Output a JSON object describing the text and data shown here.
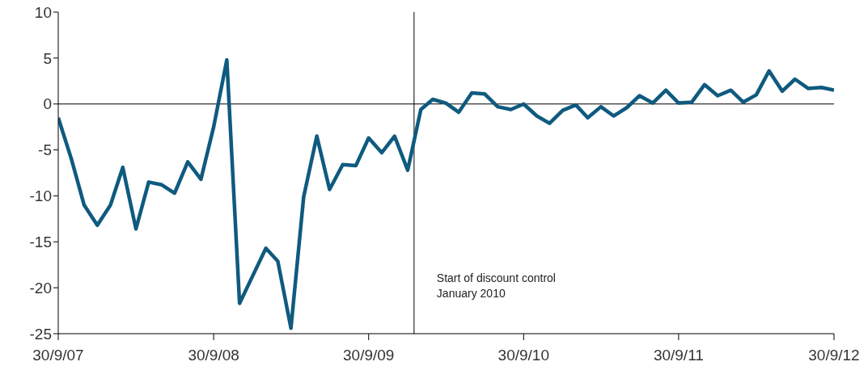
{
  "chart_data": {
    "type": "line",
    "x": [
      "2007-09-30",
      "2007-10-31",
      "2007-11-30",
      "2007-12-31",
      "2008-01-31",
      "2008-02-29",
      "2008-03-31",
      "2008-04-30",
      "2008-05-31",
      "2008-06-30",
      "2008-07-31",
      "2008-08-31",
      "2008-09-30",
      "2008-10-31",
      "2008-11-30",
      "2008-12-31",
      "2009-01-31",
      "2009-02-28",
      "2009-03-31",
      "2009-04-30",
      "2009-05-31",
      "2009-06-30",
      "2009-07-31",
      "2009-08-31",
      "2009-09-30",
      "2009-10-31",
      "2009-11-30",
      "2009-12-31",
      "2010-01-31",
      "2010-02-28",
      "2010-03-31",
      "2010-04-30",
      "2010-05-31",
      "2010-06-30",
      "2010-07-31",
      "2010-08-31",
      "2010-09-30",
      "2010-10-31",
      "2010-11-30",
      "2010-12-31",
      "2011-01-31",
      "2011-02-28",
      "2011-03-31",
      "2011-04-30",
      "2011-05-31",
      "2011-06-30",
      "2011-07-31",
      "2011-08-31",
      "2011-09-30",
      "2011-10-31",
      "2011-11-30",
      "2011-12-31",
      "2012-01-31",
      "2012-02-29",
      "2012-03-31",
      "2012-04-30",
      "2012-05-31",
      "2012-06-30",
      "2012-07-31",
      "2012-08-31",
      "2012-09-30"
    ],
    "series": [
      {
        "color": "#0f5a7f",
        "values": [
          -1.5,
          -6,
          -11,
          -13.2,
          -11,
          -6.9,
          -13.6,
          -8.5,
          -8.8,
          -9.7,
          -6.3,
          -8.2,
          -2.5,
          4.8,
          -21.7,
          -18.7,
          -15.7,
          -17.1,
          -24.4,
          -10.1,
          -3.5,
          -9.3,
          -6.6,
          -6.7,
          -3.7,
          -5.3,
          -3.5,
          -7.2,
          -0.6,
          0.5,
          0.1,
          -0.9,
          1.2,
          1.1,
          -0.3,
          -0.6,
          0,
          -1.3,
          -2.1,
          -0.7,
          -0.1,
          -1.5,
          -0.3,
          -1.3,
          -0.4,
          0.9,
          0.1,
          1.5,
          0.1,
          0.2,
          2.1,
          0.9,
          1.5,
          0.2,
          1,
          3.6,
          1.4,
          2.7,
          1.7,
          1.8,
          1.5
        ]
      }
    ],
    "xlim": [
      "2007-09-30",
      "2012-09-30"
    ],
    "xticks": [
      {
        "value": "2007-09-30",
        "label": "30/9/07"
      },
      {
        "value": "2008-09-30",
        "label": "30/9/08"
      },
      {
        "value": "2009-09-30",
        "label": "30/9/09"
      },
      {
        "value": "2010-09-30",
        "label": "30/9/10"
      },
      {
        "value": "2011-09-30",
        "label": "30/9/11"
      },
      {
        "value": "2012-09-30",
        "label": "30/9/12"
      }
    ],
    "ylim": [
      -25,
      10
    ],
    "yticks": [
      -25,
      -20,
      -15,
      -10,
      -5,
      0,
      5,
      10
    ],
    "ref_lines": [
      {
        "axis": "x",
        "value": "2010-01-15",
        "label": "Start of discount control\nJanuary 2010",
        "color": "#000000"
      },
      {
        "axis": "y",
        "value": 0,
        "color": "#000000"
      }
    ],
    "grid": false,
    "legend": false,
    "marker": "none",
    "line_style": "solid"
  }
}
